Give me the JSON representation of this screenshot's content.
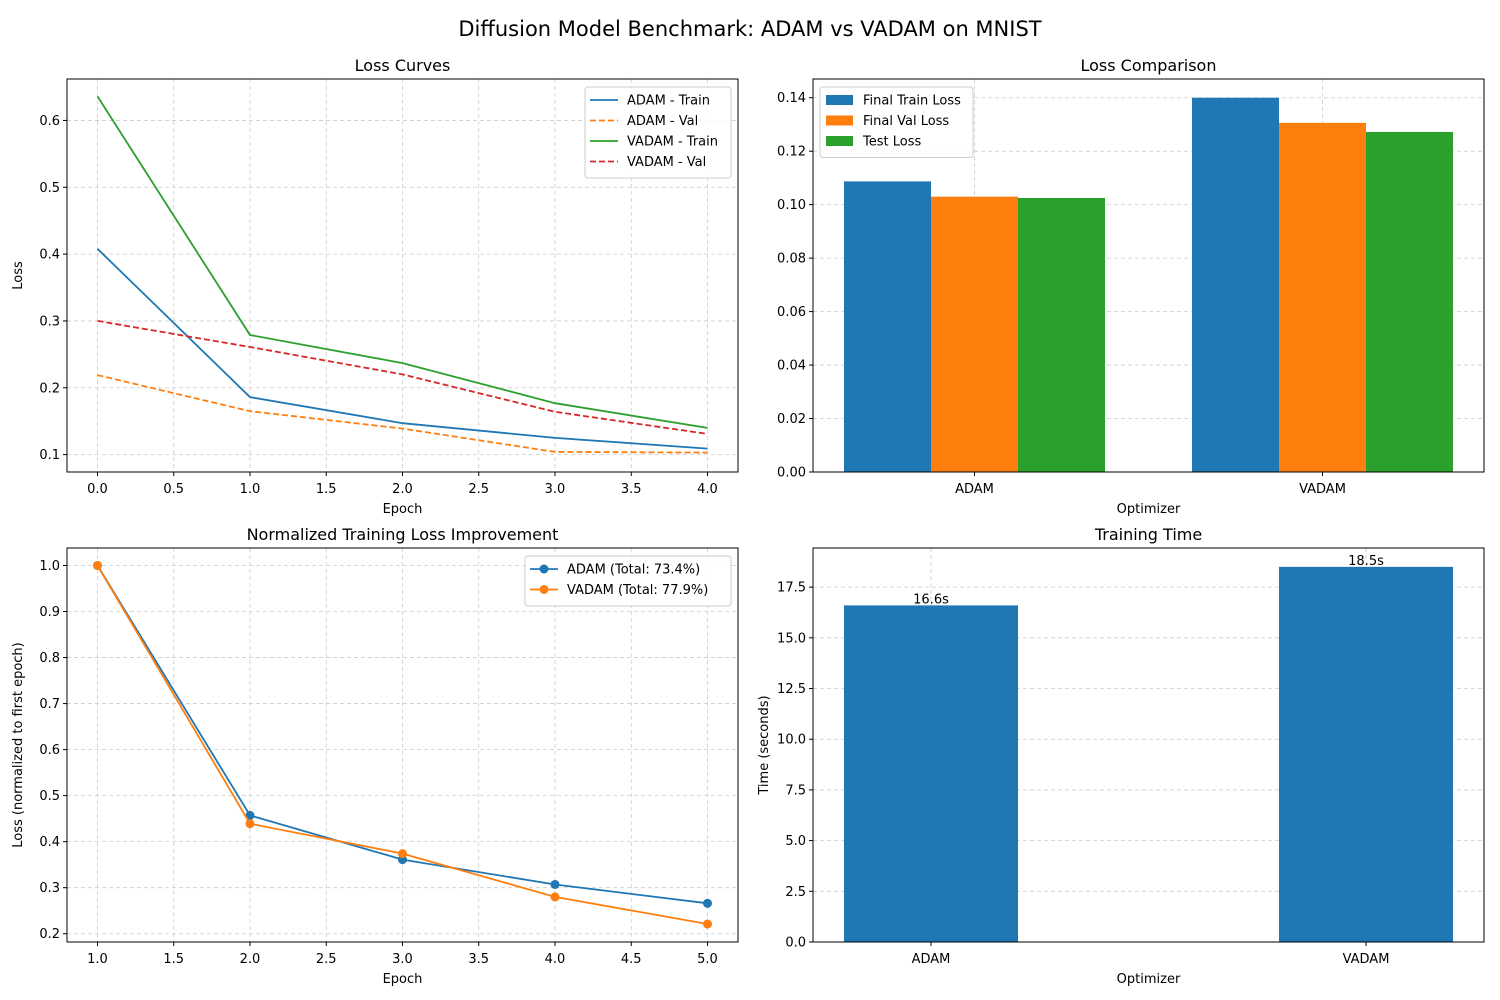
{
  "figure": {
    "title": "Diffusion Model Benchmark: ADAM vs VADAM on MNIST"
  },
  "colors": {
    "blue": "#1f77b4",
    "orange": "#ff7f0e",
    "green": "#2ca02c",
    "red": "#d62728",
    "grid": "#cccccc"
  },
  "chart_data": [
    {
      "id": "loss-curves",
      "type": "line",
      "title": "Loss Curves",
      "xlabel": "Epoch",
      "ylabel": "Loss",
      "xlim": [
        -0.2,
        4.2
      ],
      "ylim": [
        0.074,
        0.662
      ],
      "xticks": [
        0.0,
        0.5,
        1.0,
        1.5,
        2.0,
        2.5,
        3.0,
        3.5,
        4.0
      ],
      "xtick_labels": [
        "0.0",
        "0.5",
        "1.0",
        "1.5",
        "2.0",
        "2.5",
        "3.0",
        "3.5",
        "4.0"
      ],
      "yticks": [
        0.1,
        0.2,
        0.3,
        0.4,
        0.5,
        0.6
      ],
      "ytick_labels": [
        "0.1",
        "0.2",
        "0.3",
        "0.4",
        "0.5",
        "0.6"
      ],
      "grid": true,
      "legend": "top-right",
      "x": [
        0,
        1,
        2,
        3,
        4
      ],
      "series": [
        {
          "name": "ADAM - Train",
          "values": [
            0.408,
            0.186,
            0.147,
            0.125,
            0.109
          ],
          "color": "#1f77b4",
          "dash": false
        },
        {
          "name": "ADAM - Val",
          "values": [
            0.219,
            0.165,
            0.139,
            0.104,
            0.103
          ],
          "color": "#ff7f0e",
          "dash": true
        },
        {
          "name": "VADAM - Train",
          "values": [
            0.636,
            0.279,
            0.237,
            0.177,
            0.14
          ],
          "color": "#2ca02c",
          "dash": false
        },
        {
          "name": "VADAM - Val",
          "values": [
            0.3,
            0.261,
            0.22,
            0.164,
            0.131
          ],
          "color": "#d62728",
          "dash": true
        }
      ]
    },
    {
      "id": "loss-comparison",
      "type": "bar",
      "title": "Loss Comparison",
      "xlabel": "Optimizer",
      "ylabel": "",
      "categories": [
        "ADAM",
        "VADAM"
      ],
      "ylim": [
        0,
        0.147
      ],
      "yticks": [
        0,
        0.02,
        0.04,
        0.06,
        0.08,
        0.1,
        0.12,
        0.14
      ],
      "ytick_labels": [
        "0.00",
        "0.02",
        "0.04",
        "0.06",
        "0.08",
        "0.10",
        "0.12",
        "0.14"
      ],
      "grid": true,
      "legend": "top-left",
      "series": [
        {
          "name": "Final Train Loss",
          "values": [
            0.1087,
            0.14
          ],
          "color": "#1f77b4"
        },
        {
          "name": "Final Val Loss",
          "values": [
            0.103,
            0.1306
          ],
          "color": "#ff7f0e"
        },
        {
          "name": "Test Loss",
          "values": [
            0.1025,
            0.1272
          ],
          "color": "#2ca02c"
        }
      ]
    },
    {
      "id": "normalized-improvement",
      "type": "line",
      "title": "Normalized Training Loss Improvement",
      "xlabel": "Epoch",
      "ylabel": "Loss (normalized to first epoch)",
      "xlim": [
        0.8,
        5.2
      ],
      "ylim": [
        0.182,
        1.038
      ],
      "xticks": [
        1.0,
        1.5,
        2.0,
        2.5,
        3.0,
        3.5,
        4.0,
        4.5,
        5.0
      ],
      "xtick_labels": [
        "1.0",
        "1.5",
        "2.0",
        "2.5",
        "3.0",
        "3.5",
        "4.0",
        "4.5",
        "5.0"
      ],
      "yticks": [
        0.2,
        0.3,
        0.4,
        0.5,
        0.6,
        0.7,
        0.8,
        0.9,
        1.0
      ],
      "ytick_labels": [
        "0.2",
        "0.3",
        "0.4",
        "0.5",
        "0.6",
        "0.7",
        "0.8",
        "0.9",
        "1.0"
      ],
      "grid": true,
      "legend": "top-right",
      "markers": true,
      "x": [
        1,
        2,
        3,
        4,
        5
      ],
      "series": [
        {
          "name": "ADAM (Total: 73.4%)",
          "values": [
            1.0,
            0.457,
            0.361,
            0.307,
            0.266
          ],
          "color": "#1f77b4"
        },
        {
          "name": "VADAM (Total: 77.9%)",
          "values": [
            1.0,
            0.439,
            0.374,
            0.28,
            0.221
          ],
          "color": "#ff7f0e"
        }
      ]
    },
    {
      "id": "training-time",
      "type": "bar",
      "title": "Training Time",
      "xlabel": "Optimizer",
      "ylabel": "Time (seconds)",
      "categories": [
        "ADAM",
        "VADAM"
      ],
      "values": [
        16.6,
        18.5
      ],
      "data_labels": [
        "16.6s",
        "18.5s"
      ],
      "ylim": [
        0,
        19.43
      ],
      "yticks": [
        0,
        2.5,
        5.0,
        7.5,
        10.0,
        12.5,
        15.0,
        17.5
      ],
      "ytick_labels": [
        "0.0",
        "2.5",
        "5.0",
        "7.5",
        "10.0",
        "12.5",
        "15.0",
        "17.5"
      ],
      "grid": true,
      "color": "#1f77b4"
    }
  ]
}
